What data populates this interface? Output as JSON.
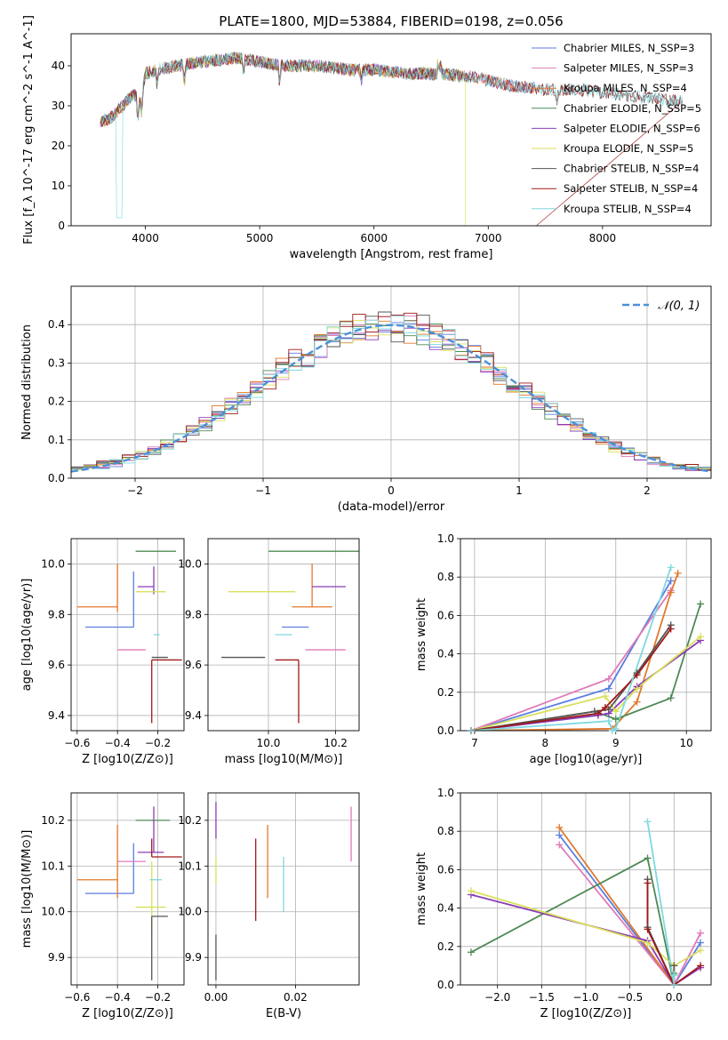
{
  "figure_title": "PLATE=1800, MJD=53884, FIBERID=0198, z=0.056",
  "colors": {
    "Chabrier MILES": "#5b7fe0",
    "Salpeter MILES": "#e07ab8",
    "Kroupa MILES": "#e0792c",
    "Chabrier ELODIE": "#4f8a55",
    "Salpeter ELODIE": "#8a3cb8",
    "Kroupa ELODIE": "#d9e05a",
    "Chabrier STELIB": "#555555",
    "Salpeter STELIB": "#a01818",
    "Kroupa STELIB": "#7fd8e0"
  },
  "chart_data": [
    {
      "id": "spectrum",
      "type": "line",
      "title": "PLATE=1800, MJD=53884, FIBERID=0198, z=0.056",
      "xlabel": "wavelength [Angstrom, rest frame]",
      "ylabel": "Flux [f_λ 10^-17 erg cm^-2 s^-1 A^-1]",
      "xlim": [
        3350,
        8950
      ],
      "ylim": [
        0,
        48
      ],
      "xticks": [
        4000,
        5000,
        6000,
        7000,
        8000
      ],
      "yticks": [
        0,
        10,
        20,
        30,
        40
      ],
      "grid": false,
      "legend_position": "top-right",
      "legend": [
        "Chabrier MILES, N_SSP=3",
        "Salpeter MILES, N_SSP=3",
        "Kroupa MILES, N_SSP=4",
        "Chabrier ELODIE, N_SSP=5",
        "Salpeter ELODIE, N_SSP=6",
        "Kroupa ELODIE, N_SSP=5",
        "Chabrier STELIB, N_SSP=4",
        "Salpeter STELIB, N_SSP=4",
        "Kroupa STELIB, N_SSP=4"
      ],
      "data_x": [
        3600,
        3700,
        3800,
        3900,
        3950,
        4000,
        4100,
        4300,
        4500,
        4800,
        5000,
        5200,
        5500,
        5800,
        6000,
        6300,
        6600,
        6900,
        7200,
        7500,
        7800,
        8100,
        8400,
        8700
      ],
      "data_y": [
        26,
        27,
        30,
        33,
        31,
        38,
        39,
        40,
        41,
        42,
        41,
        40,
        40,
        39,
        39,
        38,
        38,
        37,
        35,
        34,
        34,
        33,
        32,
        31
      ]
    },
    {
      "id": "residuals",
      "type": "line",
      "xlabel": "(data-model)/error",
      "ylabel": "Normed distribution",
      "xlim": [
        -2.5,
        2.5
      ],
      "ylim": [
        0,
        0.5
      ],
      "xticks": [
        -2,
        -1,
        0,
        1,
        2
      ],
      "yticks": [
        0.0,
        0.1,
        0.2,
        0.3,
        0.4
      ],
      "grid": true,
      "legend_position": "top-right",
      "legend": [
        "𝒩(0, 1)"
      ],
      "bin_width": 0.1
    },
    {
      "id": "age_vs_Z",
      "type": "scatter",
      "xlabel": "Z [log10(Z/Z⊙)]",
      "ylabel": "age  [log10(age/yr)]",
      "xlim": [
        -0.63,
        -0.07
      ],
      "ylim": [
        9.34,
        10.1
      ],
      "xticks": [
        -0.6,
        -0.4,
        -0.2
      ],
      "xticklabels": [
        "−0.6",
        "−0.4",
        "−0.2"
      ],
      "yticks": [
        9.4,
        9.6,
        9.8,
        10.0
      ],
      "grid": true,
      "points": [
        {
          "series": "Chabrier MILES",
          "x": -0.32,
          "y": 9.75,
          "xerr": [
            0.24,
            0.0
          ],
          "yerr": [
            0.0,
            0.22
          ]
        },
        {
          "series": "Salpeter MILES",
          "x": -0.26,
          "y": 9.66,
          "xerr": [
            0.14,
            0.0
          ],
          "yerr": [
            0.0,
            0.0
          ]
        },
        {
          "series": "Kroupa MILES",
          "x": -0.4,
          "y": 9.83,
          "xerr": [
            0.2,
            0.0
          ],
          "yerr": [
            0.02,
            0.17
          ]
        },
        {
          "series": "Chabrier ELODIE",
          "x": -0.21,
          "y": 10.05,
          "xerr": [
            0.1,
            0.1
          ],
          "yerr": [
            0.0,
            0.0
          ]
        },
        {
          "series": "Salpeter ELODIE",
          "x": -0.22,
          "y": 9.91,
          "xerr": [
            0.08,
            0.0
          ],
          "yerr": [
            0.03,
            0.08
          ]
        },
        {
          "series": "Kroupa ELODIE",
          "x": -0.23,
          "y": 9.89,
          "xerr": [
            0.08,
            0.07
          ],
          "yerr": [
            0.0,
            0.0
          ]
        },
        {
          "series": "Chabrier STELIB",
          "x": -0.23,
          "y": 9.63,
          "xerr": [
            0.0,
            0.08
          ],
          "yerr": [
            0.0,
            0.0
          ]
        },
        {
          "series": "Salpeter STELIB",
          "x": -0.23,
          "y": 9.62,
          "xerr": [
            0.0,
            0.15
          ],
          "yerr": [
            0.25,
            0.0
          ]
        },
        {
          "series": "Kroupa STELIB",
          "x": -0.22,
          "y": 9.72,
          "xerr": [
            0.0,
            0.03
          ],
          "yerr": [
            0.0,
            0.0
          ]
        }
      ]
    },
    {
      "id": "age_vs_mass",
      "type": "scatter",
      "xlabel": "mass [log10(M/M⊙)]",
      "xlim": [
        9.82,
        10.27
      ],
      "ylim": [
        9.34,
        10.1
      ],
      "xticks": [
        10.0,
        10.2
      ],
      "yticks": [
        9.4,
        9.6,
        9.8,
        10.0
      ],
      "grid": true,
      "points": [
        {
          "series": "Chabrier MILES",
          "x": 10.04,
          "y": 9.75,
          "xerr": [
            0.0,
            0.08
          ],
          "yerr": [
            0.0,
            0.0
          ]
        },
        {
          "series": "Salpeter MILES",
          "x": 10.11,
          "y": 9.66,
          "xerr": [
            0.0,
            0.12
          ],
          "yerr": [
            0.0,
            0.0
          ]
        },
        {
          "series": "Kroupa MILES",
          "x": 10.13,
          "y": 9.83,
          "xerr": [
            0.06,
            0.06
          ],
          "yerr": [
            0.0,
            0.17
          ]
        },
        {
          "series": "Chabrier ELODIE",
          "x": 10.23,
          "y": 10.05,
          "xerr": [
            0.23,
            0.04
          ],
          "yerr": [
            0.0,
            0.0
          ]
        },
        {
          "series": "Salpeter ELODIE",
          "x": 10.18,
          "y": 9.91,
          "xerr": [
            0.05,
            0.05
          ],
          "yerr": [
            0.0,
            0.0
          ]
        },
        {
          "series": "Kroupa ELODIE",
          "x": 10.0,
          "y": 9.89,
          "xerr": [
            0.12,
            0.08
          ],
          "yerr": [
            0.0,
            0.0
          ]
        },
        {
          "series": "Chabrier STELIB",
          "x": 9.99,
          "y": 9.63,
          "xerr": [
            0.13,
            0.0
          ],
          "yerr": [
            0.0,
            0.0
          ]
        },
        {
          "series": "Salpeter STELIB",
          "x": 10.09,
          "y": 9.62,
          "xerr": [
            0.07,
            0.0
          ],
          "yerr": [
            0.25,
            0.0
          ]
        },
        {
          "series": "Kroupa STELIB",
          "x": 10.07,
          "y": 9.72,
          "xerr": [
            0.05,
            0.0
          ],
          "yerr": [
            0.0,
            0.0
          ]
        }
      ]
    },
    {
      "id": "massweight_vs_age",
      "type": "line",
      "xlabel": "age  [log10(age/yr)]",
      "ylabel": "mass weight",
      "xlim": [
        6.8,
        10.35
      ],
      "ylim": [
        0,
        1.0
      ],
      "xticks": [
        7,
        8,
        9,
        10
      ],
      "yticks": [
        0.0,
        0.2,
        0.4,
        0.6,
        0.8,
        1.0
      ],
      "grid": true,
      "series": [
        {
          "name": "Chabrier MILES",
          "x": [
            6.95,
            8.9,
            9.78
          ],
          "y": [
            0.0,
            0.22,
            0.78
          ]
        },
        {
          "name": "Salpeter MILES",
          "x": [
            6.95,
            8.9,
            9.78
          ],
          "y": [
            0.0,
            0.27,
            0.73
          ]
        },
        {
          "name": "Kroupa MILES",
          "x": [
            6.95,
            8.95,
            9.3,
            9.78,
            9.88
          ],
          "y": [
            0.0,
            0.01,
            0.15,
            0.72,
            0.82
          ]
        },
        {
          "name": "Chabrier ELODIE",
          "x": [
            6.95,
            8.7,
            9.0,
            9.78,
            10.2
          ],
          "y": [
            0.0,
            0.1,
            0.06,
            0.17,
            0.66
          ]
        },
        {
          "name": "Salpeter ELODIE",
          "x": [
            6.95,
            8.75,
            8.9,
            9.3,
            10.2
          ],
          "y": [
            0.0,
            0.08,
            0.09,
            0.23,
            0.47
          ]
        },
        {
          "name": "Kroupa ELODIE",
          "x": [
            6.95,
            8.85,
            9.0,
            9.3,
            10.2
          ],
          "y": [
            0.0,
            0.18,
            0.1,
            0.22,
            0.49
          ]
        },
        {
          "name": "Chabrier STELIB",
          "x": [
            6.95,
            8.7,
            8.9,
            9.3,
            9.78
          ],
          "y": [
            0.0,
            0.1,
            0.11,
            0.3,
            0.55
          ]
        },
        {
          "name": "Salpeter STELIB",
          "x": [
            6.95,
            8.75,
            8.85,
            9.3,
            9.78
          ],
          "y": [
            0.0,
            0.09,
            0.12,
            0.29,
            0.53
          ]
        },
        {
          "name": "Kroupa STELIB",
          "x": [
            6.95,
            8.9,
            8.95,
            9.0,
            9.78
          ],
          "y": [
            0.0,
            0.05,
            0.0,
            0.01,
            0.85
          ]
        }
      ]
    },
    {
      "id": "mass_vs_Z",
      "type": "scatter",
      "xlabel": "Z [log10(Z/Z⊙)]",
      "ylabel": "mass [log10(M/M⊙)]",
      "xlim": [
        -0.63,
        -0.07
      ],
      "ylim": [
        9.84,
        10.26
      ],
      "xticks": [
        -0.6,
        -0.4,
        -0.2
      ],
      "xticklabels": [
        "−0.6",
        "−0.4",
        "−0.2"
      ],
      "yticks": [
        9.9,
        10.0,
        10.1,
        10.2
      ],
      "grid": true,
      "points": [
        {
          "series": "Chabrier MILES",
          "x": -0.32,
          "y": 10.04,
          "xerr": [
            0.24,
            0.0
          ],
          "yerr": [
            0.0,
            0.11
          ]
        },
        {
          "series": "Salpeter MILES",
          "x": -0.26,
          "y": 10.11,
          "xerr": [
            0.14,
            0.0
          ],
          "yerr": [
            0.0,
            0.0
          ]
        },
        {
          "series": "Kroupa MILES",
          "x": -0.4,
          "y": 10.07,
          "xerr": [
            0.2,
            0.0
          ],
          "yerr": [
            0.04,
            0.12
          ]
        },
        {
          "series": "Chabrier ELODIE",
          "x": -0.21,
          "y": 10.2,
          "xerr": [
            0.1,
            0.07
          ],
          "yerr": [
            0.0,
            0.0
          ]
        },
        {
          "series": "Salpeter ELODIE",
          "x": -0.22,
          "y": 10.13,
          "xerr": [
            0.08,
            0.05
          ],
          "yerr": [
            0.0,
            0.1
          ]
        },
        {
          "series": "Kroupa ELODIE",
          "x": -0.23,
          "y": 10.01,
          "xerr": [
            0.08,
            0.07
          ],
          "yerr": [
            0.06,
            0.1
          ]
        },
        {
          "series": "Chabrier STELIB",
          "x": -0.23,
          "y": 9.99,
          "xerr": [
            0.0,
            0.08
          ],
          "yerr": [
            0.14,
            0.0
          ]
        },
        {
          "series": "Salpeter STELIB",
          "x": -0.23,
          "y": 10.12,
          "xerr": [
            0.0,
            0.15
          ],
          "yerr": [
            0.0,
            0.04
          ]
        },
        {
          "series": "Kroupa STELIB",
          "x": -0.21,
          "y": 10.07,
          "xerr": [
            0.03,
            0.03
          ],
          "yerr": [
            0.0,
            0.0
          ]
        }
      ]
    },
    {
      "id": "mass_vs_EBV",
      "type": "scatter",
      "xlabel": "E(B-V)",
      "xlim": [
        -0.002,
        0.036
      ],
      "ylim": [
        9.84,
        10.26
      ],
      "xticks": [
        0.0,
        0.02
      ],
      "xticklabels": [
        "0.00",
        "0.02"
      ],
      "yticks": [
        9.9,
        10.0,
        10.1,
        10.2
      ],
      "grid": true,
      "points": [
        {
          "series": "Chabrier STELIB",
          "x": 0.0,
          "y": 9.95,
          "yerr": [
            0.1,
            0.0
          ]
        },
        {
          "series": "Salpeter ELODIE",
          "x": 0.0,
          "y": 10.16,
          "yerr": [
            0.0,
            0.08
          ]
        },
        {
          "series": "Kroupa ELODIE",
          "x": 0.0,
          "y": 10.06,
          "yerr": [
            0.0,
            0.06
          ]
        },
        {
          "series": "Salpeter STELIB",
          "x": 0.01,
          "y": 10.1,
          "yerr": [
            0.12,
            0.06
          ]
        },
        {
          "series": "Kroupa MILES",
          "x": 0.013,
          "y": 10.08,
          "yerr": [
            0.05,
            0.11
          ]
        },
        {
          "series": "Kroupa STELIB",
          "x": 0.017,
          "y": 10.06,
          "yerr": [
            0.06,
            0.06
          ]
        },
        {
          "series": "Salpeter MILES",
          "x": 0.034,
          "y": 10.17,
          "yerr": [
            0.06,
            0.06
          ]
        }
      ]
    },
    {
      "id": "massweight_vs_Z",
      "type": "line",
      "xlabel": "Z [log10(Z/Z⊙)]",
      "ylabel": "mass weight",
      "xlim": [
        -2.42,
        0.42
      ],
      "ylim": [
        0,
        1.0
      ],
      "xticks": [
        -2.0,
        -1.5,
        -1.0,
        -0.5,
        0.0
      ],
      "xticklabels": [
        "−2.0",
        "−1.5",
        "−1.0",
        "−0.5",
        "0.0"
      ],
      "yticks": [
        0.0,
        0.2,
        0.4,
        0.6,
        0.8,
        1.0
      ],
      "grid": true,
      "series": [
        {
          "name": "Chabrier MILES",
          "x": [
            -1.3,
            0.0,
            0.3
          ],
          "y": [
            0.78,
            0.0,
            0.22
          ]
        },
        {
          "name": "Salpeter MILES",
          "x": [
            -1.3,
            0.0,
            0.3
          ],
          "y": [
            0.73,
            0.0,
            0.27
          ]
        },
        {
          "name": "Kroupa MILES",
          "x": [
            -1.3,
            0.0,
            0.0
          ],
          "y": [
            0.82,
            0.0,
            0.1
          ]
        },
        {
          "name": "Chabrier ELODIE",
          "x": [
            -2.3,
            -0.3,
            0.0,
            0.0
          ],
          "y": [
            0.17,
            0.66,
            0.0,
            0.06
          ]
        },
        {
          "name": "Salpeter ELODIE",
          "x": [
            -2.3,
            -0.3,
            0.0,
            0.3
          ],
          "y": [
            0.47,
            0.23,
            0.0,
            0.09
          ]
        },
        {
          "name": "Kroupa ELODIE",
          "x": [
            -2.3,
            -0.3,
            0.0,
            0.3
          ],
          "y": [
            0.49,
            0.22,
            0.1,
            0.18
          ]
        },
        {
          "name": "Chabrier STELIB",
          "x": [
            -0.3,
            -0.3,
            0.0,
            0.0
          ],
          "y": [
            0.55,
            0.3,
            0.0,
            0.1
          ]
        },
        {
          "name": "Salpeter STELIB",
          "x": [
            -0.3,
            -0.3,
            0.0,
            0.3
          ],
          "y": [
            0.53,
            0.29,
            0.0,
            0.1
          ]
        },
        {
          "name": "Kroupa STELIB",
          "x": [
            -0.3,
            0.0,
            0.0
          ],
          "y": [
            0.85,
            0.0,
            0.05
          ]
        }
      ]
    }
  ]
}
